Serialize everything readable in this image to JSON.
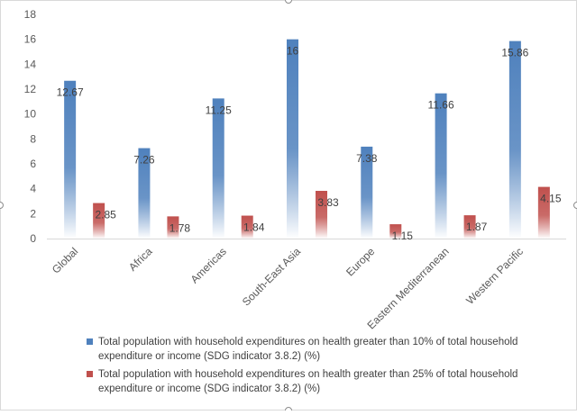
{
  "chart_data": {
    "type": "bar",
    "title": "",
    "xlabel": "",
    "ylabel": "",
    "ylim": [
      0,
      18
    ],
    "yticks": [
      0,
      2,
      4,
      6,
      8,
      10,
      12,
      14,
      16,
      18
    ],
    "ytick_labels": [
      "0",
      "2",
      "4",
      "6",
      "8",
      "10",
      "12",
      "14",
      "16",
      "18"
    ],
    "grid": false,
    "legend_position": "bottom",
    "categories": [
      "Global",
      "Africa",
      "Americas",
      "South-East Asia",
      "Europe",
      "Eastern Mediterranean",
      "Western Pacific"
    ],
    "series": [
      {
        "name": "Total population with household expenditures on health greater than 10% of total household expenditure or income (SDG indicator 3.8.2) (%)",
        "color": "#4f81bd",
        "values": [
          12.67,
          7.26,
          11.25,
          16,
          7.38,
          11.66,
          15.86
        ],
        "value_labels": [
          "12.67",
          "7.26",
          "11.25",
          "16",
          "7.38",
          "11.66",
          "15.86"
        ]
      },
      {
        "name": "Total population with household expenditures on health greater than 25% of total household expenditure or income (SDG indicator 3.8.2) (%)",
        "color": "#c0504d",
        "values": [
          2.85,
          1.78,
          1.84,
          3.83,
          1.15,
          1.87,
          4.15
        ],
        "value_labels": [
          "2.85",
          "1.78",
          "1.84",
          "3.83",
          "1.15",
          "1.87",
          "4.15"
        ]
      }
    ]
  }
}
